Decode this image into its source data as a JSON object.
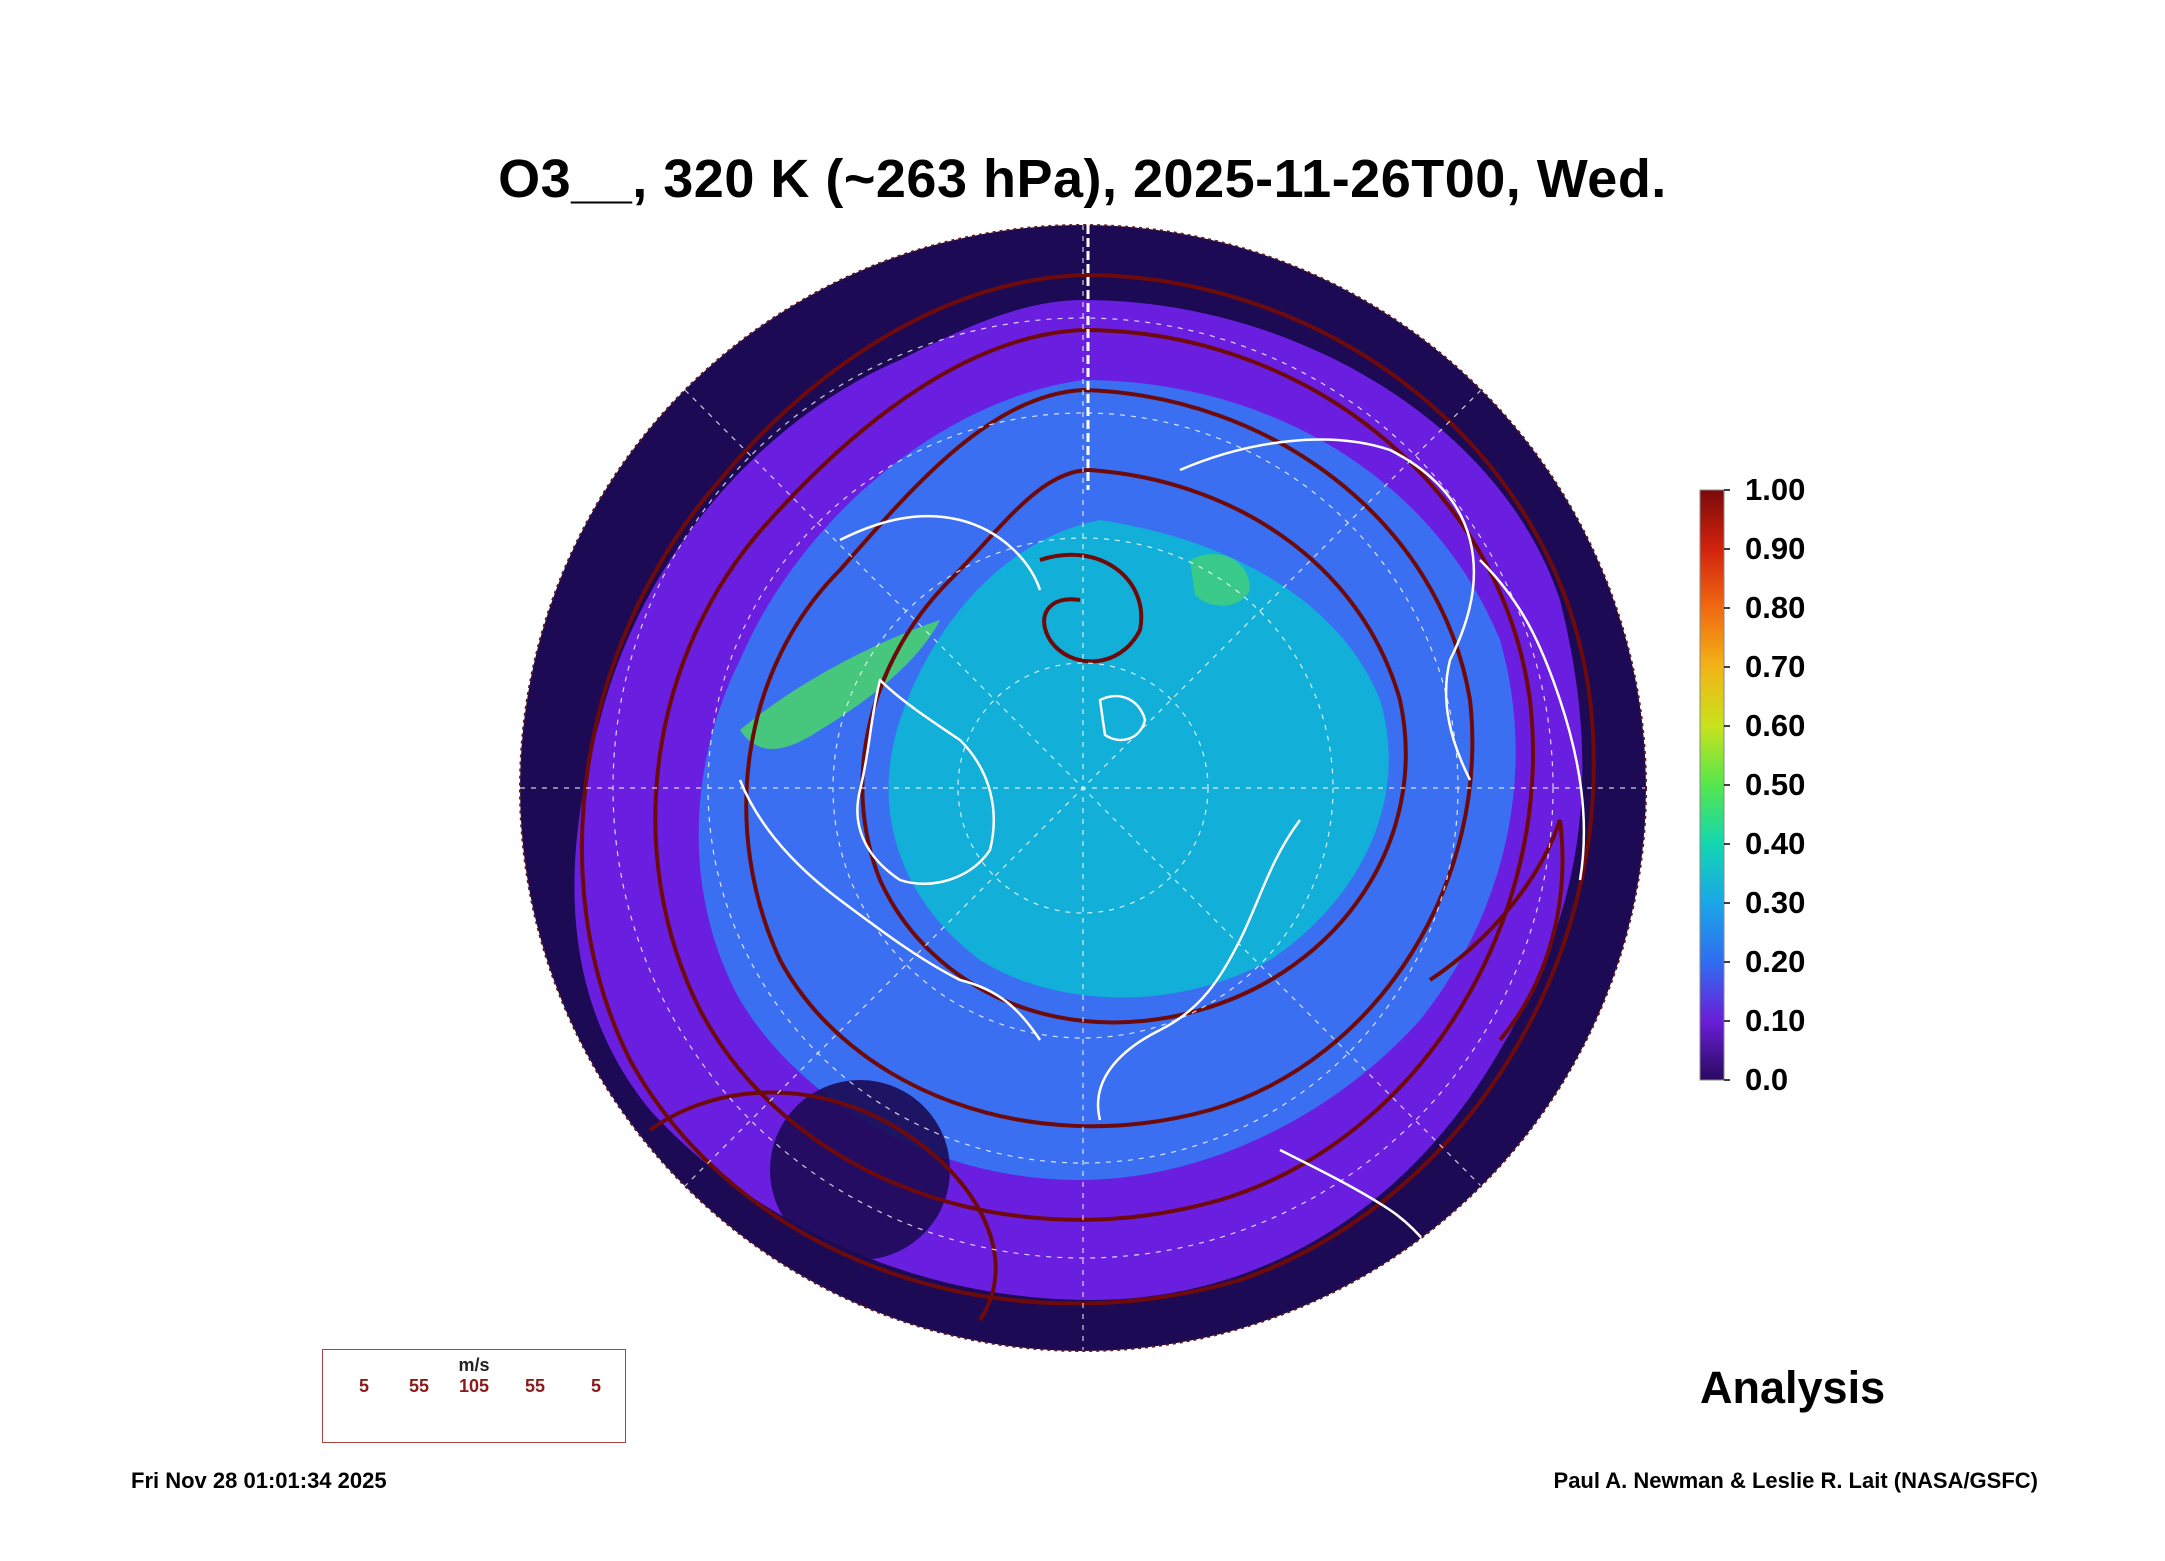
{
  "title": "O3__, 320 K (~263 hPa), 2025-11-26T00, Wed.",
  "colorbar": {
    "labels": [
      "1.00",
      "0.90",
      "0.80",
      "0.70",
      "0.60",
      "0.50",
      "0.40",
      "0.30",
      "0.20",
      "0.10",
      "0.0"
    ],
    "colors": [
      "#2a0a5e",
      "#6a1ed8",
      "#2f6df0",
      "#1aa6e8",
      "#13d6b0",
      "#55e64d",
      "#c8e21c",
      "#f2b417",
      "#f06a12",
      "#d2230e",
      "#7a0a0a"
    ]
  },
  "map_colors": {
    "low": "#1c0a54",
    "mid_low": "#6a1ee0",
    "mid": "#3b6ff2",
    "mid_high": "#12b0d8",
    "high": "#4ad66a",
    "streamline": "#6e0a0a",
    "coast": "#ffffff"
  },
  "wind_legend": {
    "unit": "m/s",
    "speeds": [
      "5",
      "55",
      "105",
      "55",
      "5"
    ]
  },
  "label_analysis": "Analysis",
  "footer": {
    "timestamp": "Fri Nov 28 01:01:34 2025",
    "credit": "Paul A. Newman & Leslie R. Lait (NASA/GSFC)"
  }
}
